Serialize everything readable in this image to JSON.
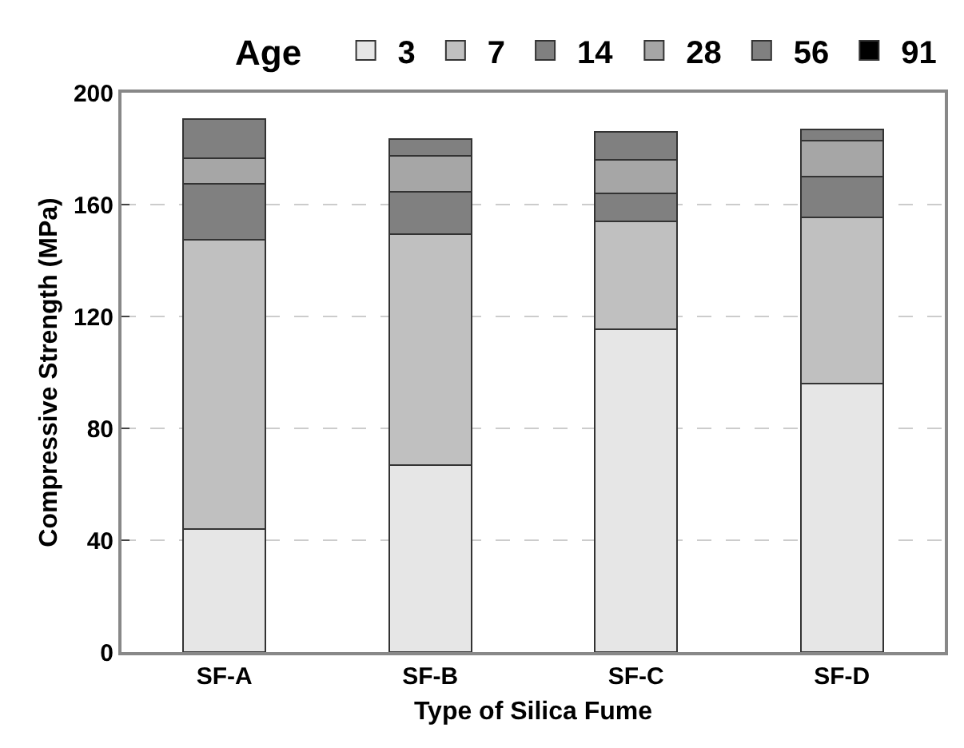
{
  "chart_data": {
    "type": "bar",
    "stacked": true,
    "xlabel": "Type of Silica Fume",
    "ylabel": "Compressive Strength (MPa)",
    "legend_title": "Age",
    "legend": "top",
    "grid": "y",
    "ylim": [
      0,
      200
    ],
    "yticks": [
      0,
      40,
      80,
      120,
      160,
      200
    ],
    "categories": [
      "SF-A",
      "SF-B",
      "SF-C",
      "SF-D"
    ],
    "series": [
      {
        "name": "3",
        "color": "#e6e6e6",
        "values": [
          44,
          67,
          115.5,
          96
        ]
      },
      {
        "name": "7",
        "color": "#c0c0c0",
        "values": [
          103.5,
          82.5,
          38.5,
          59.5
        ]
      },
      {
        "name": "14",
        "color": "#808080",
        "values": [
          20,
          15,
          10,
          14.5
        ]
      },
      {
        "name": "28",
        "color": "#a6a6a6",
        "values": [
          9,
          13,
          12,
          13
        ]
      },
      {
        "name": "56",
        "color": "#808080",
        "values": [
          14,
          6,
          10,
          4
        ]
      },
      {
        "name": "91",
        "color": "#000000",
        "values": [
          null,
          null,
          null,
          null
        ]
      }
    ]
  }
}
